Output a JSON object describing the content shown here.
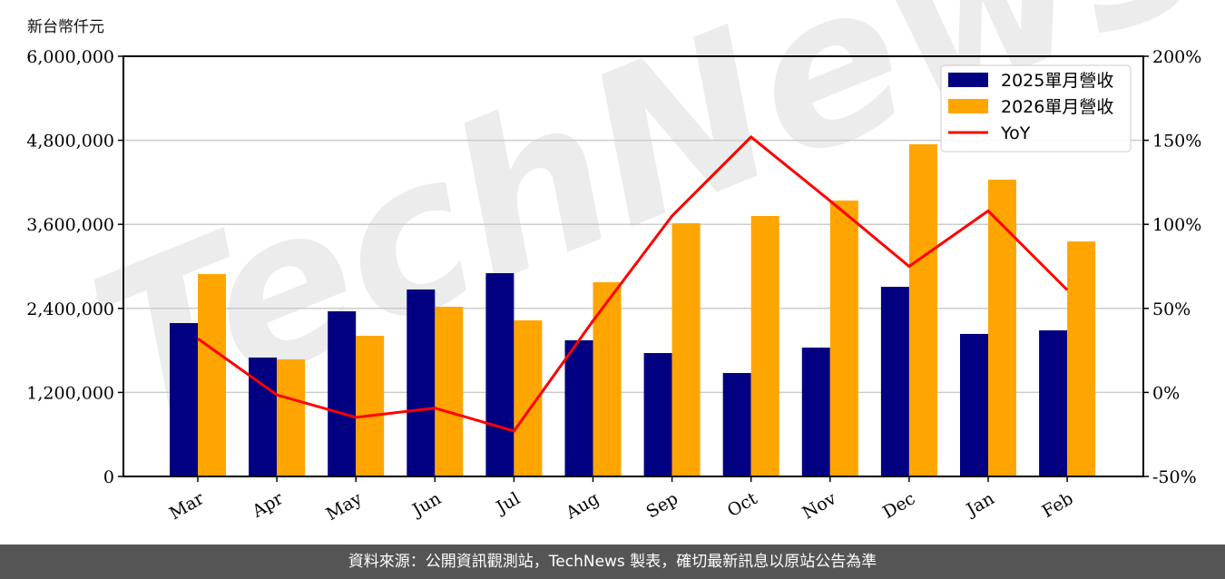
{
  "chart_data": {
    "type": "bar+line",
    "ylabel_left": "新台幣仟元",
    "categories": [
      "Mar",
      "Apr",
      "May",
      "Jun",
      "Jul",
      "Aug",
      "Sep",
      "Oct",
      "Nov",
      "Dec",
      "Jan",
      "Feb"
    ],
    "series": [
      {
        "name": "2025單月營收",
        "type": "bar",
        "axis": "left",
        "color": "#000080",
        "values": [
          2190000,
          1698000,
          2358000,
          2670000,
          2903000,
          1944000,
          1762000,
          1477000,
          1840000,
          2708000,
          2035000,
          2086000
        ]
      },
      {
        "name": "2026單月營收",
        "type": "bar",
        "axis": "left",
        "color": "#FFA500",
        "values": [
          2890000,
          1672000,
          2009000,
          2423000,
          2229000,
          2773000,
          3616000,
          3719000,
          3940000,
          4743000,
          4238000,
          3356000
        ]
      },
      {
        "name": "YoY",
        "type": "line",
        "axis": "right",
        "color": "#FF0000",
        "values": [
          32,
          -1.5,
          -14.8,
          -9.3,
          -23,
          42.6,
          105,
          152,
          114,
          75,
          108,
          61
        ]
      }
    ],
    "ylim_left": [
      0,
      6000000
    ],
    "yticks_left": [
      "0",
      "1,200,000",
      "2,400,000",
      "3,600,000",
      "4,800,000",
      "6,000,000"
    ],
    "ylim_right": [
      -50,
      200
    ],
    "yticks_right": [
      "-50%",
      "0%",
      "50%",
      "100%",
      "150%",
      "200%"
    ],
    "grid": "horizontal",
    "legend": "top-right",
    "watermark": "TechNews"
  },
  "footer": "資料來源：公開資訊觀測站，TechNews 製表，確切最新訊息以原站公告為準"
}
